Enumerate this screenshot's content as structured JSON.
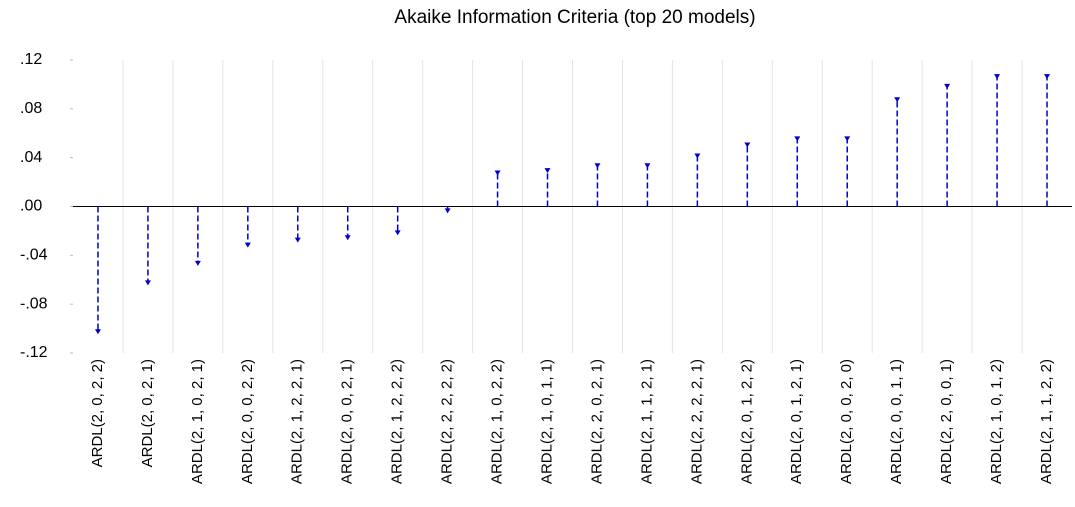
{
  "chart_data": {
    "type": "stem",
    "title": "Akaike Information Criteria (top 20 models)",
    "categories": [
      "ARDL(2, 0, 2, 2)",
      "ARDL(2, 0, 2, 1)",
      "ARDL(2, 1, 0, 2, 1)",
      "ARDL(2, 0, 0, 2, 2)",
      "ARDL(2, 1, 2, 2, 1)",
      "ARDL(2, 0, 0, 2, 1)",
      "ARDL(2, 1, 2, 2, 2)",
      "ARDL(2, 2, 2, 2, 2)",
      "ARDL(2, 1, 0, 2, 2)",
      "ARDL(2, 1, 0, 1, 1)",
      "ARDL(2, 2, 0, 2, 1)",
      "ARDL(2, 1, 1, 2, 1)",
      "ARDL(2, 2, 2, 2, 1)",
      "ARDL(2, 0, 1, 2, 2)",
      "ARDL(2, 0, 1, 2, 1)",
      "ARDL(2, 0, 0, 2, 0)",
      "ARDL(2, 0, 0, 1, 1)",
      "ARDL(2, 2, 0, 0, 1)",
      "ARDL(2, 1, 0, 1, 2)",
      "ARDL(2, 1, 1, 2, 2)"
    ],
    "values": [
      -0.103,
      -0.063,
      -0.047,
      -0.032,
      -0.028,
      -0.026,
      -0.022,
      -0.004,
      0.027,
      0.029,
      0.033,
      0.033,
      0.041,
      0.05,
      0.055,
      0.055,
      0.087,
      0.098,
      0.106,
      0.106
    ],
    "color": "#0000cc",
    "ylim": [
      -0.12,
      0.12
    ],
    "yticks": [
      {
        "value": -0.12,
        "label": "-.12"
      },
      {
        "value": -0.08,
        "label": "-.08"
      },
      {
        "value": -0.04,
        "label": "-.04"
      },
      {
        "value": 0,
        "label": ".00"
      },
      {
        "value": 0.04,
        "label": ".04"
      },
      {
        "value": 0.08,
        "label": ".08"
      },
      {
        "value": 0.12,
        "label": ".12"
      }
    ],
    "grid": "x"
  }
}
